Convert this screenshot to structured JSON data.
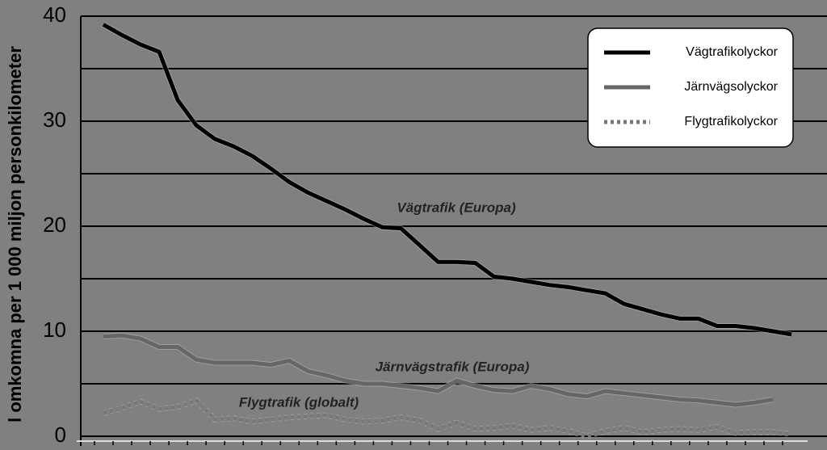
{
  "chart_data": {
    "type": "line",
    "y_label": "l omkomna per 1 000 miljon personkilometer",
    "categories": [
      null,
      null,
      null,
      null,
      null,
      null,
      null,
      null,
      null,
      null,
      null,
      null,
      null,
      null,
      null,
      null,
      null,
      null,
      null,
      null,
      null,
      null,
      null,
      null,
      null,
      null,
      null,
      null,
      null,
      null,
      null,
      null,
      null,
      null,
      null,
      null,
      null,
      null
    ],
    "series": [
      {
        "name": "Vägtrafikolyckor",
        "color": "#000000",
        "dash": "solid",
        "values": [
          39.2,
          38.2,
          37.3,
          36.6,
          32,
          29.6,
          28.3,
          27.6,
          26.7,
          25.5,
          24.2,
          23.2,
          22.4,
          21.6,
          20.7,
          19.9,
          19.8,
          18.2,
          16.6,
          16.6,
          16.5,
          15.2,
          15,
          14.7,
          14.4,
          14.2,
          13.9,
          13.6,
          12.6,
          12.1,
          11.6,
          11.2,
          11.2,
          10.5,
          10.5,
          10.3,
          10,
          9.7
        ]
      },
      {
        "name": "Järnvägsolyckor",
        "color": "#666666",
        "dash": "solid",
        "values": [
          9.5,
          9.6,
          9.3,
          8.5,
          8.5,
          7.3,
          7.0,
          7.0,
          7.0,
          6.8,
          7.2,
          6.2,
          5.8,
          5.3,
          5.0,
          5.0,
          4.8,
          4.6,
          4.3,
          5.3,
          4.8,
          4.4,
          4.3,
          4.8,
          4.5,
          4.0,
          3.8,
          4.3,
          4.1,
          3.9,
          3.7,
          3.5,
          3.4,
          3.2,
          3.0,
          3.2,
          3.5,
          null
        ]
      },
      {
        "name": "Flygtrafikolyckor",
        "color": "#777777",
        "dash": "dotted",
        "values": [
          2.2,
          2.7,
          3.3,
          2.6,
          2.8,
          3.4,
          1.6,
          1.7,
          1.4,
          1.6,
          1.8,
          1.9,
          2.0,
          1.6,
          1.4,
          1.5,
          1.8,
          1.5,
          0.7,
          1.3,
          0.7,
          0.8,
          1.0,
          0.6,
          0.8,
          0.5,
          0.0,
          0.5,
          0.8,
          0.4,
          0.6,
          0.7,
          0.6,
          0.9,
          0.3,
          0.4,
          0.4,
          0.2
        ]
      }
    ],
    "annotations": [
      "Vägtrafik (Europa)",
      "Järnvägstrafik (Europa)",
      "Flygtrafik (globalt)"
    ],
    "ylim": [
      0,
      40
    ],
    "yticks": [
      0,
      10,
      20,
      30,
      40
    ],
    "minor_yticks": [
      5,
      15,
      25,
      35
    ],
    "grid": true,
    "legend": "upper right"
  }
}
